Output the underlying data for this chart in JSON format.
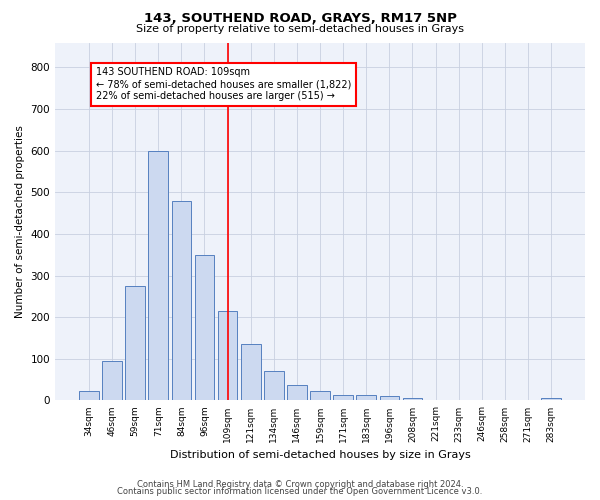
{
  "title1": "143, SOUTHEND ROAD, GRAYS, RM17 5NP",
  "title2": "Size of property relative to semi-detached houses in Grays",
  "xlabel": "Distribution of semi-detached houses by size in Grays",
  "ylabel": "Number of semi-detached properties",
  "categories": [
    "34sqm",
    "46sqm",
    "59sqm",
    "71sqm",
    "84sqm",
    "96sqm",
    "109sqm",
    "121sqm",
    "134sqm",
    "146sqm",
    "159sqm",
    "171sqm",
    "183sqm",
    "196sqm",
    "208sqm",
    "221sqm",
    "233sqm",
    "246sqm",
    "258sqm",
    "271sqm",
    "283sqm"
  ],
  "values": [
    22,
    95,
    275,
    600,
    480,
    350,
    215,
    135,
    70,
    38,
    22,
    14,
    14,
    10,
    5,
    0,
    0,
    0,
    0,
    0,
    5
  ],
  "bar_color": "#ccd9f0",
  "bar_edge_color": "#5580c0",
  "vline_index": 6,
  "annotation_text": "143 SOUTHEND ROAD: 109sqm\n← 78% of semi-detached houses are smaller (1,822)\n22% of semi-detached houses are larger (515) →",
  "footer1": "Contains HM Land Registry data © Crown copyright and database right 2024.",
  "footer2": "Contains public sector information licensed under the Open Government Licence v3.0.",
  "ylim": [
    0,
    860
  ],
  "yticks": [
    0,
    100,
    200,
    300,
    400,
    500,
    600,
    700,
    800
  ],
  "background_color": "#eef2fa",
  "grid_color": "#c8d0e0"
}
